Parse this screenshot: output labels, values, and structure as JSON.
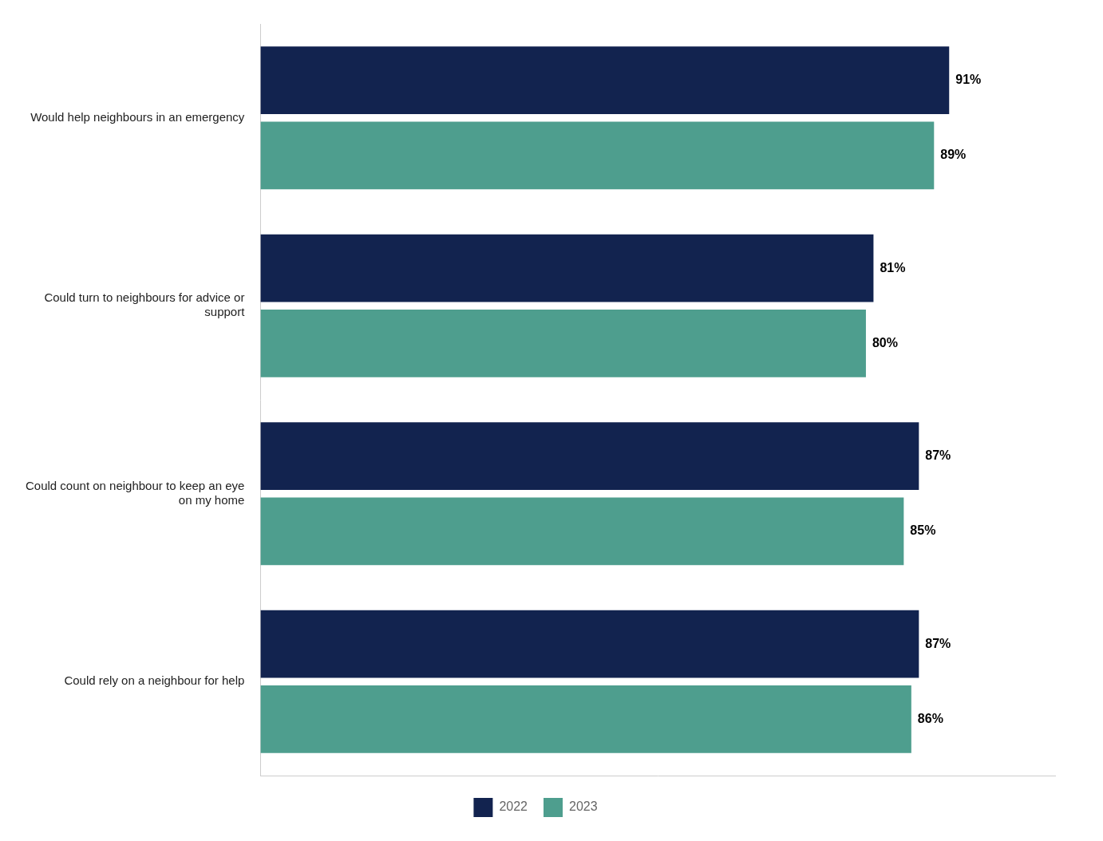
{
  "chart_data": {
    "type": "bar",
    "orientation": "horizontal",
    "categories": [
      "Would help neighbours in an emergency",
      "Could turn to neighbours for advice or\nsupport",
      "Could count on neighbour to keep an eye\non my home",
      "Could rely on a neighbour for help"
    ],
    "series": [
      {
        "name": "2022",
        "color": "#12234f",
        "values": [
          91,
          81,
          87,
          87
        ],
        "value_labels": [
          "91%",
          "81%",
          "87%",
          "87%"
        ]
      },
      {
        "name": "2023",
        "color": "#4e9e8e",
        "values": [
          89,
          80,
          85,
          86
        ],
        "value_labels": [
          "89%",
          "80%",
          "85%",
          "86%"
        ]
      }
    ],
    "xlim": [
      0,
      105
    ],
    "xticks": [],
    "data_labels": true,
    "tick_labels": "y",
    "legend": "bottom",
    "grid": false
  }
}
